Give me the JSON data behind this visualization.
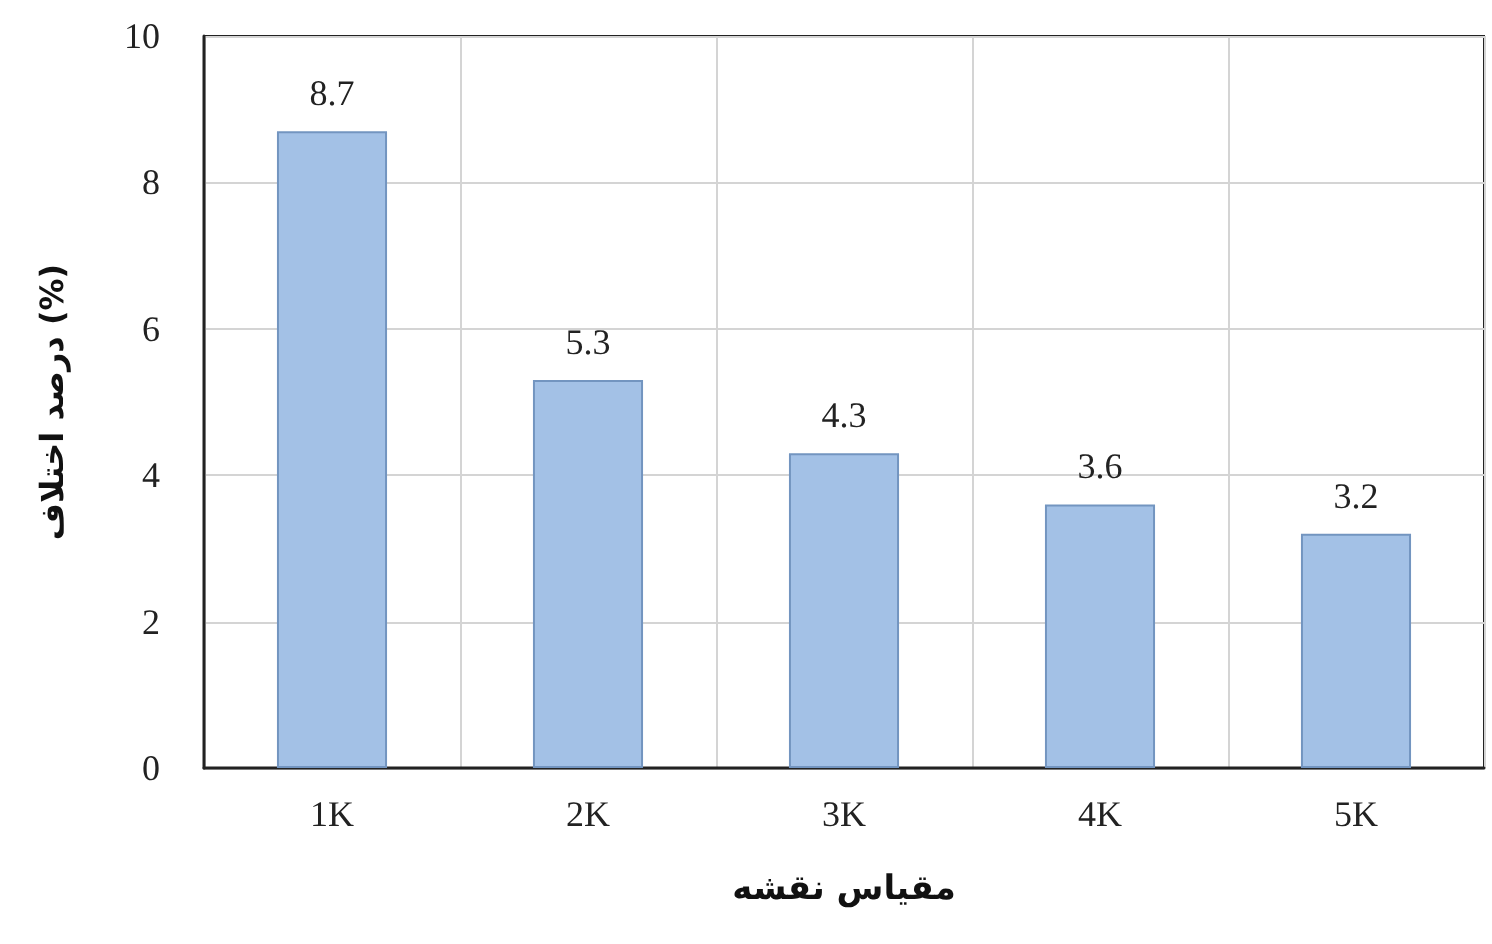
{
  "chart_data": {
    "type": "bar",
    "xlabel": "مقیاس نقشه",
    "ylabel": "درصد اختلاف (%)",
    "categories": [
      "1K",
      "2K",
      "3K",
      "4K",
      "5K"
    ],
    "values": [
      8.7,
      5.3,
      4.3,
      3.6,
      3.2
    ],
    "color": "#a3c1e6",
    "ylim": [
      0,
      10
    ],
    "yticks": [
      0,
      2,
      4,
      6,
      8,
      10
    ],
    "grid": true,
    "data_labels": true
  }
}
